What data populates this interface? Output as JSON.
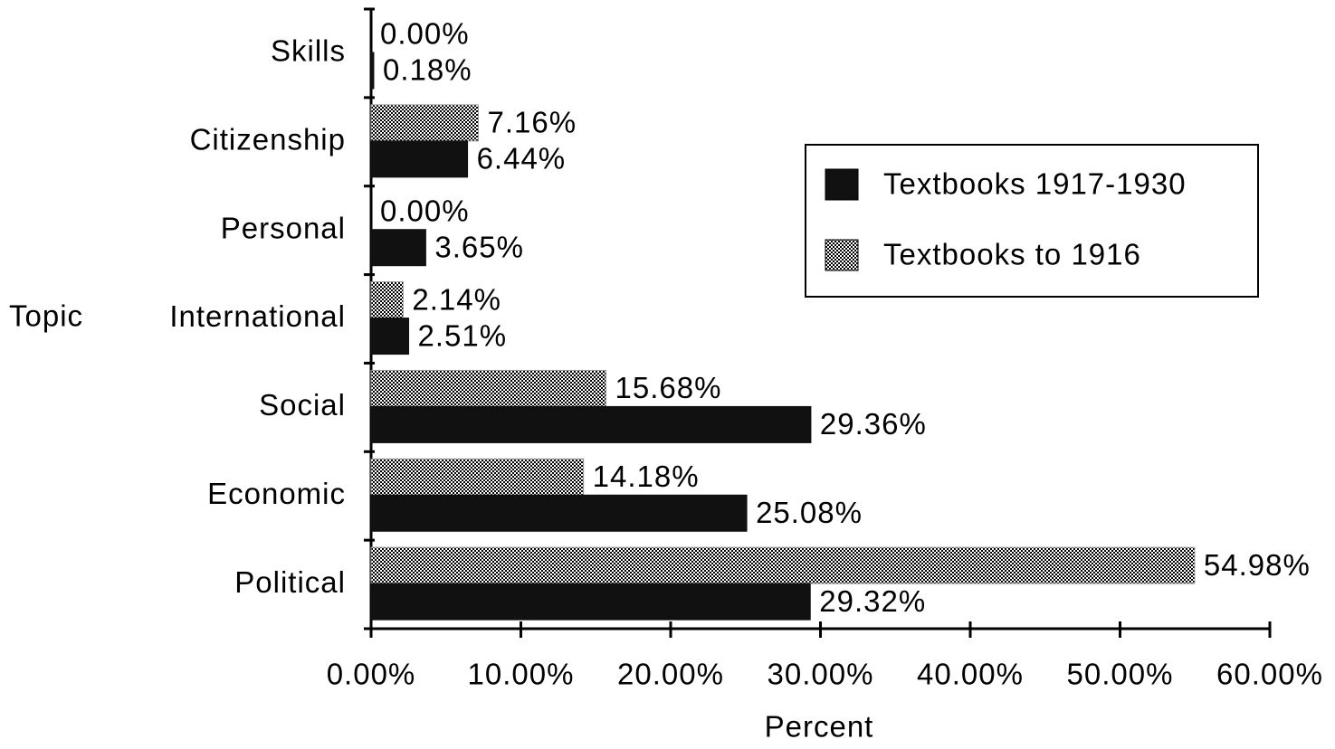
{
  "chart_data": {
    "type": "bar",
    "orientation": "horizontal",
    "x_label": "Percent",
    "y_label": "Topic",
    "categories": [
      "Skills",
      "Citizenship",
      "Personal",
      "International",
      "Social",
      "Economic",
      "Political"
    ],
    "series": [
      {
        "name": "Textbooks 1917-1930",
        "color": "#111111",
        "values": [
          0.18,
          6.44,
          3.65,
          2.51,
          29.36,
          25.08,
          29.32
        ],
        "value_labels": [
          "0.18%",
          "6.44%",
          "3.65%",
          "2.51%",
          "29.36%",
          "25.08%",
          "29.32%"
        ]
      },
      {
        "name": "Textbooks to 1916",
        "color": "#9a9a9a",
        "values": [
          0.0,
          7.16,
          0.0,
          2.14,
          15.68,
          14.18,
          54.98
        ],
        "value_labels": [
          "0.00%",
          "7.16%",
          "0.00%",
          "2.14%",
          "15.68%",
          "14.18%",
          "54.98%"
        ]
      }
    ],
    "xlim": [
      0,
      60
    ],
    "xticks": [
      {
        "value": 0,
        "label": "0.00%"
      },
      {
        "value": 10,
        "label": "10.00%"
      },
      {
        "value": 20,
        "label": "20.00%"
      },
      {
        "value": 30,
        "label": "30.00%"
      },
      {
        "value": 40,
        "label": "40.00%"
      },
      {
        "value": 50,
        "label": "50.00%"
      },
      {
        "value": 60,
        "label": "60.00%"
      }
    ],
    "legend": "upper right",
    "grid": false
  }
}
